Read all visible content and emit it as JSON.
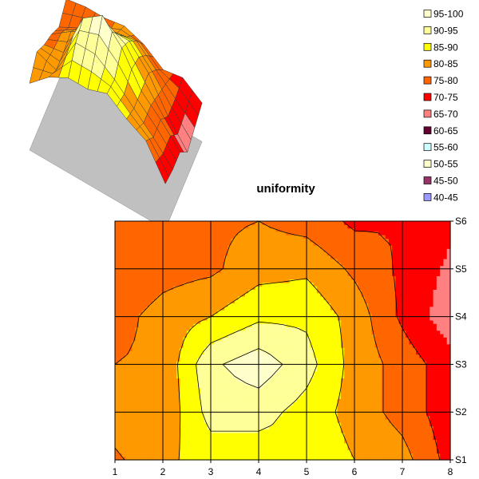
{
  "chart_data": {
    "type": "surface-contour",
    "title": "uniformity",
    "x_categories": [
      "1",
      "2",
      "3",
      "4",
      "5",
      "6",
      "7",
      "8"
    ],
    "y_series": [
      "S1",
      "S2",
      "S3",
      "S4",
      "S5",
      "S6"
    ],
    "z_grid": [
      [
        79,
        84,
        87,
        87,
        89,
        85,
        82,
        73
      ],
      [
        83,
        81,
        92,
        92,
        88,
        83,
        78,
        72
      ],
      [
        80,
        81,
        94,
        98,
        92,
        83,
        78,
        72
      ],
      [
        78,
        82,
        85,
        89,
        89,
        83,
        74,
        67
      ],
      [
        75,
        78,
        79,
        83,
        84,
        79,
        74,
        69
      ],
      [
        78,
        79,
        79,
        80,
        78,
        74,
        75,
        71
      ]
    ],
    "legend": [
      {
        "label": "95-100",
        "color": "#ffffcc"
      },
      {
        "label": "90-95",
        "color": "#ffff99"
      },
      {
        "label": "85-90",
        "color": "#ffff00"
      },
      {
        "label": "80-85",
        "color": "#ff9900"
      },
      {
        "label": "75-80",
        "color": "#ff6600"
      },
      {
        "label": "70-75",
        "color": "#ff0000"
      },
      {
        "label": "65-70",
        "color": "#ff8080"
      },
      {
        "label": "60-65",
        "color": "#660033"
      },
      {
        "label": "55-60",
        "color": "#ccffff"
      },
      {
        "label": "50-55",
        "color": "#ffffcc"
      },
      {
        "label": "45-50",
        "color": "#993366"
      },
      {
        "label": "40-45",
        "color": "#9999ff"
      }
    ],
    "legend_position": "right",
    "grid": true,
    "floor_color": "#c0c0c0"
  }
}
